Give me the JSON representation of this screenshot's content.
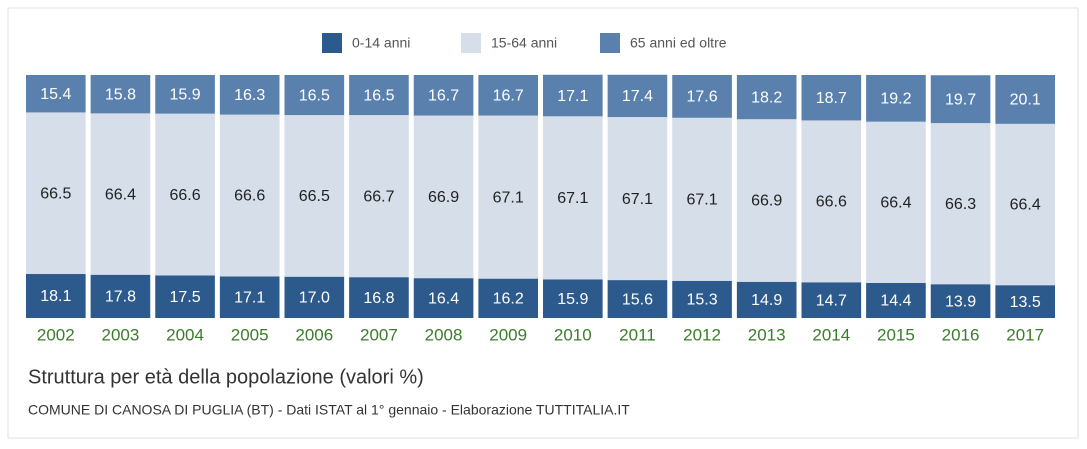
{
  "chart_data": {
    "type": "stacked_bar",
    "title": "Struttura per età della popolazione (valori %)",
    "subtitle": "COMUNE DI CANOSA DI PUGLIA (BT) - Dati ISTAT al 1° gennaio - Elaborazione TUTTITALIA.IT",
    "categories": [
      "2002",
      "2003",
      "2004",
      "2005",
      "2006",
      "2007",
      "2008",
      "2009",
      "2010",
      "2011",
      "2012",
      "2013",
      "2014",
      "2015",
      "2016",
      "2017"
    ],
    "ylim": [
      0,
      100
    ],
    "legend": "top",
    "series": [
      {
        "name": "0-14 anni",
        "color": "#2d5a8c",
        "values": [
          18.1,
          17.8,
          17.5,
          17.1,
          17.0,
          16.8,
          16.4,
          16.2,
          15.9,
          15.6,
          15.3,
          14.9,
          14.7,
          14.4,
          13.9,
          13.5
        ],
        "value_labels": [
          "18.1",
          "17.8",
          "17.5",
          "17.1",
          "17.0",
          "16.8",
          "16.4",
          "16.2",
          "15.9",
          "15.6",
          "15.3",
          "14.9",
          "14.7",
          "14.4",
          "13.9",
          "13.5"
        ]
      },
      {
        "name": "15-64 anni",
        "color": "#d6dee9",
        "values": [
          66.5,
          66.4,
          66.6,
          66.6,
          66.5,
          66.7,
          66.9,
          67.1,
          67.1,
          67.1,
          67.1,
          66.9,
          66.6,
          66.4,
          66.3,
          66.4
        ],
        "value_labels": [
          "66.5",
          "66.4",
          "66.6",
          "66.6",
          "66.5",
          "66.7",
          "66.9",
          "67.1",
          "67.1",
          "67.1",
          "67.1",
          "66.9",
          "66.6",
          "66.4",
          "66.3",
          "66.4"
        ]
      },
      {
        "name": "65 anni ed oltre",
        "color": "#5a80ae",
        "values": [
          15.4,
          15.8,
          15.9,
          16.3,
          16.5,
          16.5,
          16.7,
          16.7,
          17.1,
          17.4,
          17.6,
          18.2,
          18.7,
          19.2,
          19.7,
          20.1
        ],
        "value_labels": [
          "15.4",
          "15.8",
          "15.9",
          "16.3",
          "16.5",
          "16.5",
          "16.7",
          "16.7",
          "17.1",
          "17.4",
          "17.6",
          "18.2",
          "18.7",
          "19.2",
          "19.7",
          "20.1"
        ]
      }
    ]
  }
}
